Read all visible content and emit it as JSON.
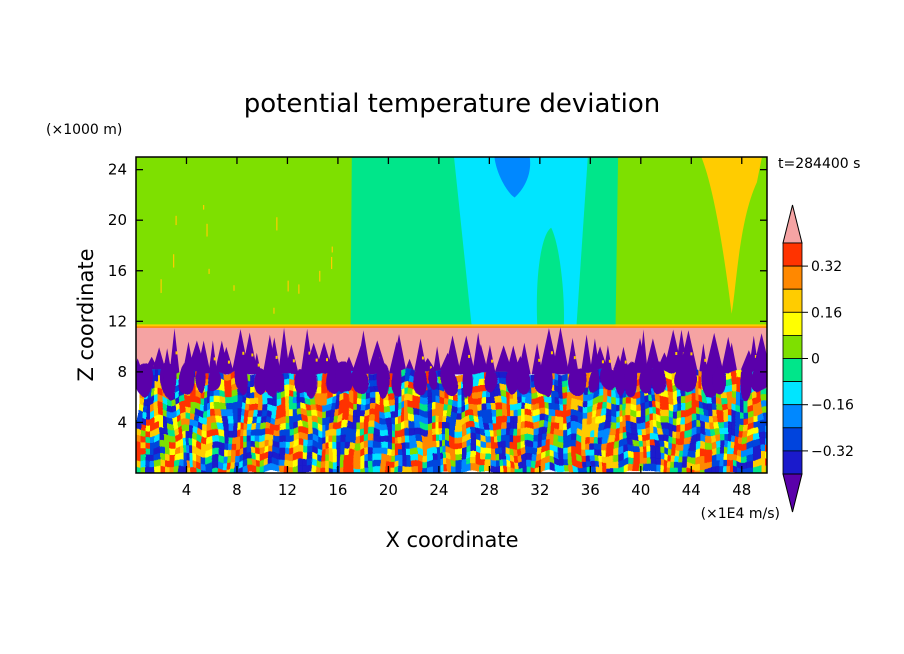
{
  "chart_data": {
    "type": "heatmap",
    "title": "potential temperature deviation",
    "xlabel": "X coordinate",
    "ylabel": "Z coordinate",
    "x_unit": "(×1E4 m/s)",
    "y_unit": "(×1000 m)",
    "time_label": "t=284400 s",
    "xlim": [
      0,
      50
    ],
    "ylim": [
      0,
      25
    ],
    "x_ticks": [
      4,
      8,
      12,
      16,
      20,
      24,
      28,
      32,
      36,
      40,
      44,
      48
    ],
    "y_ticks": [
      4,
      8,
      12,
      16,
      20,
      24
    ],
    "colorbar": {
      "levels": [
        -0.4,
        -0.32,
        -0.24,
        -0.16,
        -0.08,
        0,
        0.08,
        0.16,
        0.24,
        0.32,
        0.4
      ],
      "colors": [
        "#5a00aa",
        "#1a1acc",
        "#0044dd",
        "#0088ff",
        "#00e5ff",
        "#00e68a",
        "#7ee000",
        "#ffff00",
        "#ffcc00",
        "#ff8800",
        "#ff3300",
        "#f5a3a3"
      ],
      "tick_values": [
        0.32,
        0.16,
        0,
        -0.16,
        -0.32
      ],
      "tick_labels": [
        "0.32",
        "0.16",
        "0",
        "−0.16",
        "−0.32"
      ],
      "extend": "both"
    },
    "regions": [
      {
        "name": "upper-layer",
        "z_range": [
          11.6,
          25
        ],
        "dominant_value": 0.04
      },
      {
        "name": "upper-cool-zone",
        "x_range": [
          17,
          38
        ],
        "z_range": [
          11.6,
          25
        ],
        "dominant_value": -0.1
      },
      {
        "name": "upper-cold-core",
        "x": 30,
        "z": 24,
        "value": -0.2
      },
      {
        "name": "upper-warm-plume",
        "x": 47,
        "z": 20,
        "value": 0.16
      },
      {
        "name": "inversion-layer",
        "z_range": [
          8,
          11.6
        ],
        "dominant_value": 0.45
      },
      {
        "name": "convective-layer",
        "z_range": [
          0,
          8
        ],
        "value_range": [
          -0.4,
          0.4
        ]
      }
    ]
  }
}
